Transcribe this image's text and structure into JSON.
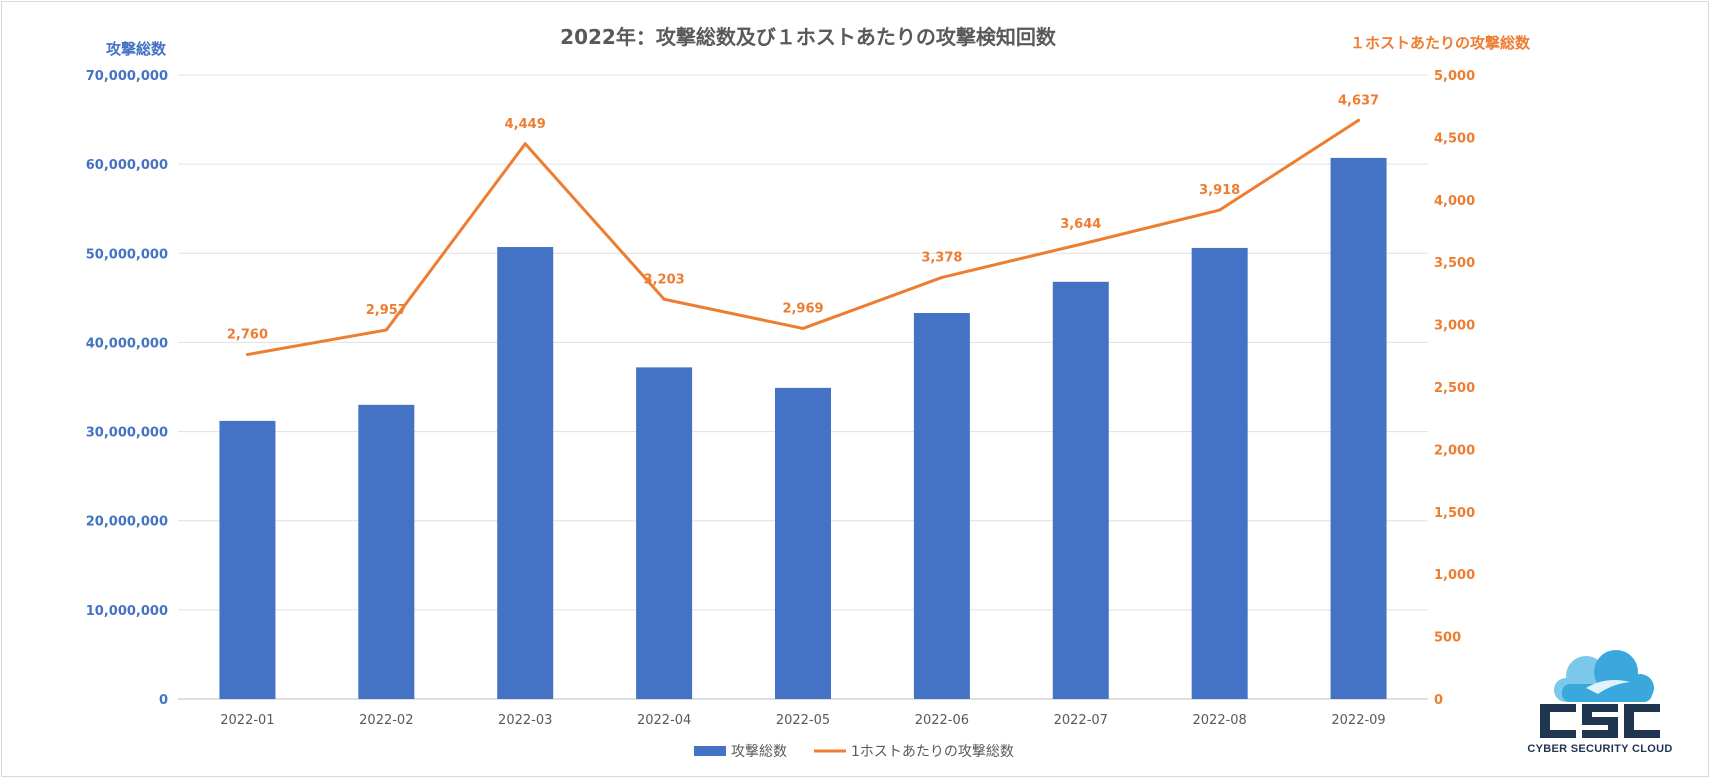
{
  "chart_data": {
    "type": "bar",
    "title": "2022年：攻撃総数及び１ホストあたりの攻撃検知回数",
    "categories": [
      "2022-01",
      "2022-02",
      "2022-03",
      "2022-04",
      "2022-05",
      "2022-06",
      "2022-07",
      "2022-08",
      "2022-09"
    ],
    "y_left_label": "攻撃総数",
    "y_right_label": "１ホストあたりの攻撃総数",
    "ylim_left": [
      0,
      70000000
    ],
    "ylim_right": [
      0,
      5000
    ],
    "y_left_ticks": [
      "0",
      "10,000,000",
      "20,000,000",
      "30,000,000",
      "40,000,000",
      "50,000,000",
      "60,000,000",
      "70,000,000"
    ],
    "y_right_ticks": [
      "0",
      "500",
      "1,000",
      "1,500",
      "2,000",
      "2,500",
      "3,000",
      "3,500",
      "4,000",
      "4,500",
      "5,000"
    ],
    "grid": true,
    "legend_position": "bottom",
    "series": [
      {
        "name": "攻撃総数",
        "type": "bar",
        "axis": "left",
        "color": "#4472C4",
        "values": [
          31200000,
          33000000,
          50700000,
          37200000,
          34900000,
          43300000,
          46800000,
          50600000,
          60700000
        ]
      },
      {
        "name": "1ホストあたりの攻撃総数",
        "type": "line",
        "axis": "right",
        "color": "#ED7D31",
        "values": [
          2760,
          2957,
          4449,
          3203,
          2969,
          3378,
          3644,
          3918,
          4637
        ],
        "labels": [
          "2,760",
          "2,957",
          "4,449",
          "3,203",
          "2,969",
          "3,378",
          "3,644",
          "3,918",
          "4,637"
        ]
      }
    ]
  },
  "logo": {
    "letters": "CSC",
    "tagline": "CYBER SECURITY CLOUD",
    "colors": {
      "cloud": "#3aa8dc",
      "cloud_light": "#7cc8ea",
      "text": "#1f3550"
    }
  }
}
